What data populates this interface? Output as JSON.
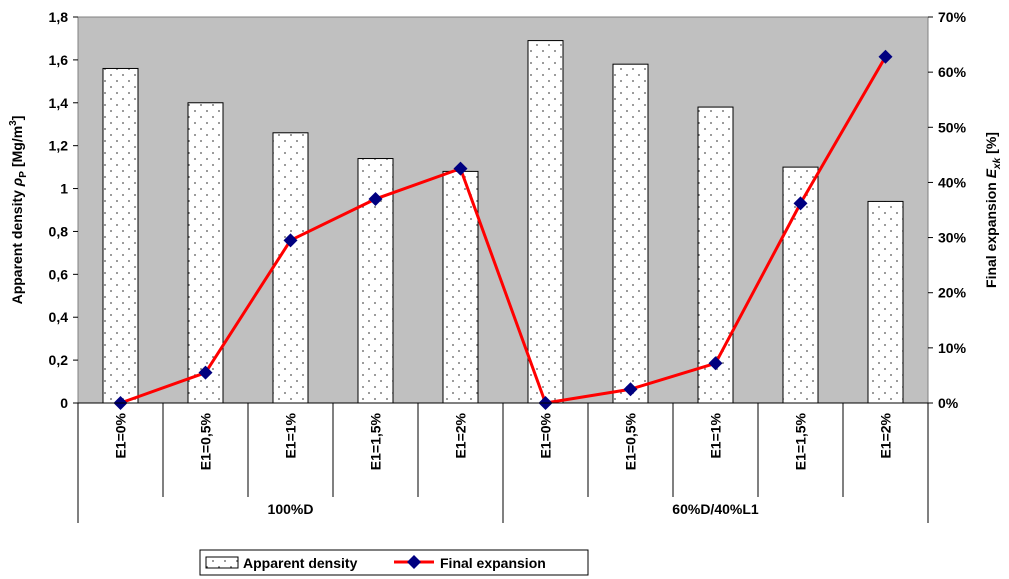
{
  "chart_data": {
    "type": "bar",
    "categories": [
      "E1=0%",
      "E1=0,5%",
      "E1=1%",
      "E1=1,5%",
      "E1=2%",
      "E1=0%",
      "E1=0,5%",
      "E1=1%",
      "E1=1,5%",
      "E1=2%"
    ],
    "groups": [
      {
        "label": "100%D",
        "start": 0,
        "end": 5
      },
      {
        "label": "60%D/40%L1",
        "start": 5,
        "end": 10
      }
    ],
    "series": [
      {
        "name": "Apparent density",
        "type": "bar",
        "axis": "left",
        "values": [
          1.56,
          1.4,
          1.26,
          1.14,
          1.08,
          1.69,
          1.58,
          1.38,
          1.1,
          0.94
        ]
      },
      {
        "name": "Final expansion",
        "type": "line",
        "axis": "right",
        "values": [
          0.0,
          5.5,
          29.5,
          37.0,
          42.5,
          0.0,
          2.5,
          7.2,
          36.2,
          62.8
        ]
      }
    ],
    "ylabel_left": {
      "main": "Apparent density",
      "symbol": "ρ",
      "sub": "P",
      "unit_pre": "[Mg/m",
      "sup": "3",
      "unit_post": "]"
    },
    "ylabel_right": {
      "main": "Final expansion",
      "symbol": "E",
      "sub": "xk",
      "unit": "[%]"
    },
    "ylim_left": [
      0,
      1.8
    ],
    "yticks_left": [
      "0",
      "0,2",
      "0,4",
      "0,6",
      "0,8",
      "1",
      "1,2",
      "1,4",
      "1,6",
      "1,8"
    ],
    "ylim_right": [
      0,
      70
    ],
    "yticks_right": [
      "0%",
      "10%",
      "20%",
      "30%",
      "40%",
      "50%",
      "60%",
      "70%"
    ],
    "legend_position": "bottom",
    "colors": {
      "plot_bg": "#c0c0c0",
      "bar_fill": "#ffffff",
      "line": "#ff0000",
      "marker": "#000080"
    }
  }
}
